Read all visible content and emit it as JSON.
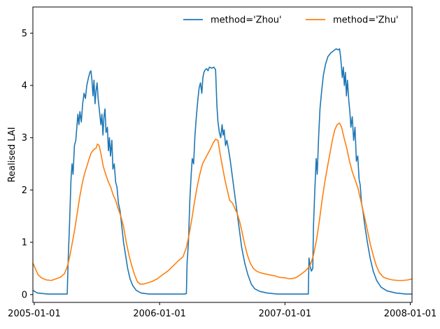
{
  "chart_data": {
    "type": "line",
    "title": "",
    "xlabel": "",
    "ylabel": "Realised LAI",
    "xlim": [
      "2004-12-28",
      "2008-01-06"
    ],
    "ylim": [
      -0.15,
      5.5
    ],
    "x_ticks": [
      "2005-01-01",
      "2006-01-01",
      "2007-01-01",
      "2008-01-01"
    ],
    "y_ticks": [
      0,
      1,
      2,
      3,
      4,
      5
    ],
    "grid": false,
    "legend": {
      "placement": "top-right",
      "columns": 2,
      "frame": false
    },
    "series": [
      {
        "name": "method='Zhou'",
        "color": "#1f77b4",
        "points": [
          [
            "2004-12-28",
            0.08
          ],
          [
            "2005-01-10",
            0.03
          ],
          [
            "2005-02-10",
            0.01
          ],
          [
            "2005-03-15",
            0.01
          ],
          [
            "2005-04-07",
            0.01
          ],
          [
            "2005-04-10",
            0.7
          ],
          [
            "2005-04-14",
            1.4
          ],
          [
            "2005-04-18",
            2.2
          ],
          [
            "2005-04-21",
            2.5
          ],
          [
            "2005-04-24",
            2.3
          ],
          [
            "2005-04-28",
            2.85
          ],
          [
            "2005-05-02",
            2.95
          ],
          [
            "2005-05-05",
            3.2
          ],
          [
            "2005-05-08",
            3.45
          ],
          [
            "2005-05-11",
            3.25
          ],
          [
            "2005-05-14",
            3.5
          ],
          [
            "2005-05-18",
            3.3
          ],
          [
            "2005-05-22",
            3.65
          ],
          [
            "2005-05-26",
            3.85
          ],
          [
            "2005-05-30",
            3.75
          ],
          [
            "2005-06-03",
            4.0
          ],
          [
            "2005-06-08",
            4.15
          ],
          [
            "2005-06-12",
            4.25
          ],
          [
            "2005-06-15",
            4.28
          ],
          [
            "2005-06-18",
            4.1
          ],
          [
            "2005-06-21",
            3.8
          ],
          [
            "2005-06-24",
            4.1
          ],
          [
            "2005-06-27",
            3.65
          ],
          [
            "2005-06-30",
            3.9
          ],
          [
            "2005-07-03",
            4.05
          ],
          [
            "2005-07-06",
            3.75
          ],
          [
            "2005-07-10",
            3.5
          ],
          [
            "2005-07-14",
            3.25
          ],
          [
            "2005-07-17",
            3.45
          ],
          [
            "2005-07-20",
            3.05
          ],
          [
            "2005-07-23",
            3.4
          ],
          [
            "2005-07-26",
            3.55
          ],
          [
            "2005-07-29",
            3.1
          ],
          [
            "2005-08-02",
            3.2
          ],
          [
            "2005-08-05",
            2.75
          ],
          [
            "2005-08-08",
            3.0
          ],
          [
            "2005-08-11",
            2.65
          ],
          [
            "2005-08-15",
            2.95
          ],
          [
            "2005-08-18",
            2.4
          ],
          [
            "2005-08-22",
            2.5
          ],
          [
            "2005-08-26",
            2.15
          ],
          [
            "2005-08-30",
            2.05
          ],
          [
            "2005-09-03",
            1.75
          ],
          [
            "2005-09-08",
            1.6
          ],
          [
            "2005-09-13",
            1.3
          ],
          [
            "2005-09-18",
            1.0
          ],
          [
            "2005-09-24",
            0.75
          ],
          [
            "2005-09-30",
            0.5
          ],
          [
            "2005-10-07",
            0.3
          ],
          [
            "2005-10-15",
            0.17
          ],
          [
            "2005-10-25",
            0.08
          ],
          [
            "2005-11-08",
            0.03
          ],
          [
            "2005-12-01",
            0.01
          ],
          [
            "2006-01-15",
            0.01
          ],
          [
            "2006-02-15",
            0.01
          ],
          [
            "2006-03-15",
            0.01
          ],
          [
            "2006-03-20",
            0.02
          ],
          [
            "2006-03-22",
            0.6
          ],
          [
            "2006-03-26",
            1.0
          ],
          [
            "2006-03-30",
            1.8
          ],
          [
            "2006-04-03",
            2.3
          ],
          [
            "2006-04-06",
            2.6
          ],
          [
            "2006-04-10",
            2.5
          ],
          [
            "2006-04-14",
            3.05
          ],
          [
            "2006-04-18",
            3.4
          ],
          [
            "2006-04-22",
            3.7
          ],
          [
            "2006-04-26",
            3.95
          ],
          [
            "2006-04-30",
            4.05
          ],
          [
            "2006-05-04",
            3.85
          ],
          [
            "2006-05-07",
            4.15
          ],
          [
            "2006-05-10",
            4.25
          ],
          [
            "2006-05-14",
            4.3
          ],
          [
            "2006-05-18",
            4.32
          ],
          [
            "2006-05-22",
            4.28
          ],
          [
            "2006-05-26",
            4.35
          ],
          [
            "2006-06-02",
            4.33
          ],
          [
            "2006-06-08",
            4.35
          ],
          [
            "2006-06-13",
            4.3
          ],
          [
            "2006-06-17",
            3.6
          ],
          [
            "2006-06-20",
            3.3
          ],
          [
            "2006-06-24",
            3.1
          ],
          [
            "2006-06-28",
            3.0
          ],
          [
            "2006-07-02",
            3.25
          ],
          [
            "2006-07-05",
            3.05
          ],
          [
            "2006-07-08",
            3.15
          ],
          [
            "2006-07-12",
            2.85
          ],
          [
            "2006-07-16",
            2.95
          ],
          [
            "2006-07-20",
            2.8
          ],
          [
            "2006-07-25",
            2.6
          ],
          [
            "2006-07-30",
            2.35
          ],
          [
            "2006-08-05",
            2.05
          ],
          [
            "2006-08-12",
            1.7
          ],
          [
            "2006-08-20",
            1.3
          ],
          [
            "2006-08-28",
            0.9
          ],
          [
            "2006-09-06",
            0.6
          ],
          [
            "2006-09-15",
            0.38
          ],
          [
            "2006-09-25",
            0.2
          ],
          [
            "2006-10-05",
            0.11
          ],
          [
            "2006-10-20",
            0.06
          ],
          [
            "2006-11-10",
            0.03
          ],
          [
            "2006-12-10",
            0.01
          ],
          [
            "2007-01-20",
            0.01
          ],
          [
            "2007-02-25",
            0.01
          ],
          [
            "2007-03-10",
            0.01
          ],
          [
            "2007-03-12",
            0.7
          ],
          [
            "2007-03-15",
            0.55
          ],
          [
            "2007-03-19",
            0.45
          ],
          [
            "2007-03-23",
            0.5
          ],
          [
            "2007-03-25",
            1.3
          ],
          [
            "2007-03-29",
            2.0
          ],
          [
            "2007-04-02",
            2.6
          ],
          [
            "2007-04-05",
            2.3
          ],
          [
            "2007-04-09",
            3.0
          ],
          [
            "2007-04-13",
            3.55
          ],
          [
            "2007-04-18",
            3.9
          ],
          [
            "2007-04-23",
            4.2
          ],
          [
            "2007-04-29",
            4.4
          ],
          [
            "2007-05-06",
            4.55
          ],
          [
            "2007-05-14",
            4.62
          ],
          [
            "2007-05-22",
            4.66
          ],
          [
            "2007-05-30",
            4.7
          ],
          [
            "2007-06-05",
            4.68
          ],
          [
            "2007-06-09",
            4.7
          ],
          [
            "2007-06-12",
            4.55
          ],
          [
            "2007-06-14",
            4.4
          ],
          [
            "2007-06-17",
            4.15
          ],
          [
            "2007-06-20",
            4.35
          ],
          [
            "2007-06-23",
            4.0
          ],
          [
            "2007-06-26",
            4.25
          ],
          [
            "2007-06-29",
            3.8
          ],
          [
            "2007-07-02",
            4.1
          ],
          [
            "2007-07-06",
            3.7
          ],
          [
            "2007-07-09",
            3.5
          ],
          [
            "2007-07-12",
            3.2
          ],
          [
            "2007-07-16",
            3.4
          ],
          [
            "2007-07-20",
            2.95
          ],
          [
            "2007-07-24",
            3.2
          ],
          [
            "2007-07-28",
            2.55
          ],
          [
            "2007-08-01",
            2.65
          ],
          [
            "2007-08-05",
            2.2
          ],
          [
            "2007-08-08",
            2.1
          ],
          [
            "2007-08-12",
            1.75
          ],
          [
            "2007-08-16",
            1.6
          ],
          [
            "2007-08-22",
            1.3
          ],
          [
            "2007-08-29",
            1.0
          ],
          [
            "2007-09-06",
            0.7
          ],
          [
            "2007-09-15",
            0.45
          ],
          [
            "2007-09-25",
            0.27
          ],
          [
            "2007-10-08",
            0.14
          ],
          [
            "2007-10-25",
            0.07
          ],
          [
            "2007-11-20",
            0.03
          ],
          [
            "2007-12-20",
            0.01
          ],
          [
            "2008-01-06",
            0.01
          ]
        ]
      },
      {
        "name": "method='Zhu'",
        "color": "#ff7f0e",
        "points": [
          [
            "2004-12-28",
            0.6
          ],
          [
            "2005-01-04",
            0.5
          ],
          [
            "2005-01-12",
            0.38
          ],
          [
            "2005-01-22",
            0.32
          ],
          [
            "2005-02-05",
            0.28
          ],
          [
            "2005-02-20",
            0.27
          ],
          [
            "2005-03-05",
            0.3
          ],
          [
            "2005-03-18",
            0.33
          ],
          [
            "2005-03-30",
            0.4
          ],
          [
            "2005-04-08",
            0.55
          ],
          [
            "2005-04-15",
            0.75
          ],
          [
            "2005-04-22",
            1.0
          ],
          [
            "2005-04-29",
            1.25
          ],
          [
            "2005-05-06",
            1.55
          ],
          [
            "2005-05-13",
            1.85
          ],
          [
            "2005-05-20",
            2.1
          ],
          [
            "2005-05-27",
            2.3
          ],
          [
            "2005-06-03",
            2.45
          ],
          [
            "2005-06-10",
            2.6
          ],
          [
            "2005-06-15",
            2.7
          ],
          [
            "2005-06-20",
            2.75
          ],
          [
            "2005-06-25",
            2.78
          ],
          [
            "2005-06-30",
            2.8
          ],
          [
            "2005-07-04",
            2.88
          ],
          [
            "2005-07-09",
            2.85
          ],
          [
            "2005-07-14",
            2.7
          ],
          [
            "2005-07-21",
            2.45
          ],
          [
            "2005-07-28",
            2.3
          ],
          [
            "2005-08-05",
            2.15
          ],
          [
            "2005-08-12",
            2.05
          ],
          [
            "2005-08-19",
            1.9
          ],
          [
            "2005-08-26",
            1.8
          ],
          [
            "2005-09-02",
            1.65
          ],
          [
            "2005-09-10",
            1.5
          ],
          [
            "2005-09-18",
            1.3
          ],
          [
            "2005-09-26",
            1.0
          ],
          [
            "2005-10-04",
            0.75
          ],
          [
            "2005-10-12",
            0.55
          ],
          [
            "2005-10-20",
            0.38
          ],
          [
            "2005-10-28",
            0.25
          ],
          [
            "2005-11-05",
            0.2
          ],
          [
            "2005-11-15",
            0.2
          ],
          [
            "2005-11-25",
            0.22
          ],
          [
            "2005-12-10",
            0.25
          ],
          [
            "2005-12-25",
            0.3
          ],
          [
            "2006-01-10",
            0.38
          ],
          [
            "2006-01-25",
            0.45
          ],
          [
            "2006-02-10",
            0.55
          ],
          [
            "2006-02-25",
            0.65
          ],
          [
            "2006-03-10",
            0.72
          ],
          [
            "2006-03-20",
            0.9
          ],
          [
            "2006-03-28",
            1.15
          ],
          [
            "2006-04-05",
            1.45
          ],
          [
            "2006-04-12",
            1.75
          ],
          [
            "2006-04-20",
            2.05
          ],
          [
            "2006-04-28",
            2.3
          ],
          [
            "2006-05-06",
            2.5
          ],
          [
            "2006-05-14",
            2.6
          ],
          [
            "2006-05-22",
            2.7
          ],
          [
            "2006-05-30",
            2.8
          ],
          [
            "2006-06-06",
            2.9
          ],
          [
            "2006-06-13",
            2.97
          ],
          [
            "2006-06-20",
            2.95
          ],
          [
            "2006-06-26",
            2.7
          ],
          [
            "2006-07-03",
            2.45
          ],
          [
            "2006-07-10",
            2.2
          ],
          [
            "2006-07-17",
            2.0
          ],
          [
            "2006-07-24",
            1.8
          ],
          [
            "2006-08-01",
            1.75
          ],
          [
            "2006-08-08",
            1.65
          ],
          [
            "2006-08-15",
            1.55
          ],
          [
            "2006-08-22",
            1.4
          ],
          [
            "2006-08-29",
            1.2
          ],
          [
            "2006-09-06",
            0.95
          ],
          [
            "2006-09-14",
            0.75
          ],
          [
            "2006-09-22",
            0.6
          ],
          [
            "2006-10-01",
            0.5
          ],
          [
            "2006-10-10",
            0.45
          ],
          [
            "2006-10-20",
            0.42
          ],
          [
            "2006-11-01",
            0.4
          ],
          [
            "2006-11-15",
            0.38
          ],
          [
            "2006-12-01",
            0.36
          ],
          [
            "2006-12-15",
            0.33
          ],
          [
            "2007-01-01",
            0.32
          ],
          [
            "2007-01-15",
            0.3
          ],
          [
            "2007-02-01",
            0.32
          ],
          [
            "2007-02-15",
            0.38
          ],
          [
            "2007-03-01",
            0.45
          ],
          [
            "2007-03-15",
            0.55
          ],
          [
            "2007-03-25",
            0.75
          ],
          [
            "2007-04-03",
            1.05
          ],
          [
            "2007-04-11",
            1.4
          ],
          [
            "2007-04-19",
            1.8
          ],
          [
            "2007-04-27",
            2.15
          ],
          [
            "2007-05-05",
            2.45
          ],
          [
            "2007-05-12",
            2.7
          ],
          [
            "2007-05-19",
            2.95
          ],
          [
            "2007-05-26",
            3.15
          ],
          [
            "2007-06-02",
            3.25
          ],
          [
            "2007-06-09",
            3.28
          ],
          [
            "2007-06-15",
            3.2
          ],
          [
            "2007-06-22",
            3.0
          ],
          [
            "2007-06-30",
            2.8
          ],
          [
            "2007-07-08",
            2.55
          ],
          [
            "2007-07-16",
            2.35
          ],
          [
            "2007-07-24",
            2.2
          ],
          [
            "2007-08-01",
            2.05
          ],
          [
            "2007-08-08",
            1.85
          ],
          [
            "2007-08-15",
            1.65
          ],
          [
            "2007-08-22",
            1.45
          ],
          [
            "2007-08-30",
            1.2
          ],
          [
            "2007-09-07",
            0.95
          ],
          [
            "2007-09-15",
            0.75
          ],
          [
            "2007-09-24",
            0.55
          ],
          [
            "2007-10-03",
            0.42
          ],
          [
            "2007-10-15",
            0.33
          ],
          [
            "2007-10-28",
            0.3
          ],
          [
            "2007-11-10",
            0.28
          ],
          [
            "2007-11-25",
            0.27
          ],
          [
            "2007-12-10",
            0.27
          ],
          [
            "2007-12-25",
            0.28
          ],
          [
            "2008-01-06",
            0.3
          ]
        ]
      }
    ]
  }
}
